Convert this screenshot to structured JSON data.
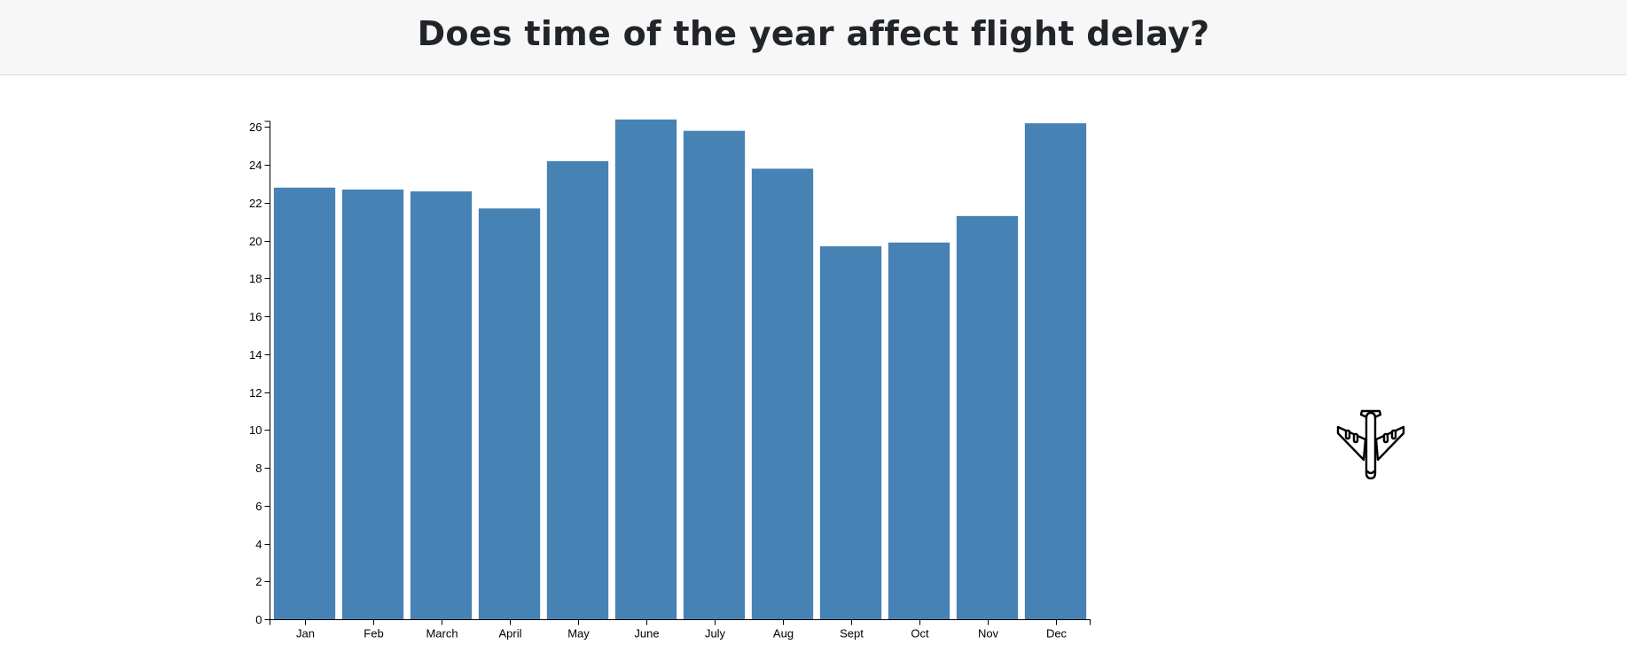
{
  "header": {
    "title": "Does time of the year affect flight delay?"
  },
  "icons": {
    "decoration": "airplane-icon"
  },
  "colors": {
    "bar": "#4682b4",
    "header_bg": "#f7f7f7",
    "axis": "#000000"
  },
  "chart_data": {
    "type": "bar",
    "categories": [
      "Jan",
      "Feb",
      "March",
      "April",
      "May",
      "June",
      "July",
      "Aug",
      "Sept",
      "Oct",
      "Nov",
      "Dec"
    ],
    "values": [
      22.8,
      22.7,
      22.6,
      21.7,
      24.2,
      26.4,
      25.8,
      23.8,
      19.7,
      19.9,
      21.3,
      26.2
    ],
    "yticks": [
      0,
      2,
      4,
      6,
      8,
      10,
      12,
      14,
      16,
      18,
      20,
      22,
      24,
      26
    ],
    "ylim": [
      0,
      26.3
    ],
    "title": "",
    "xlabel": "",
    "ylabel": "",
    "grid": false,
    "legend": "none"
  }
}
